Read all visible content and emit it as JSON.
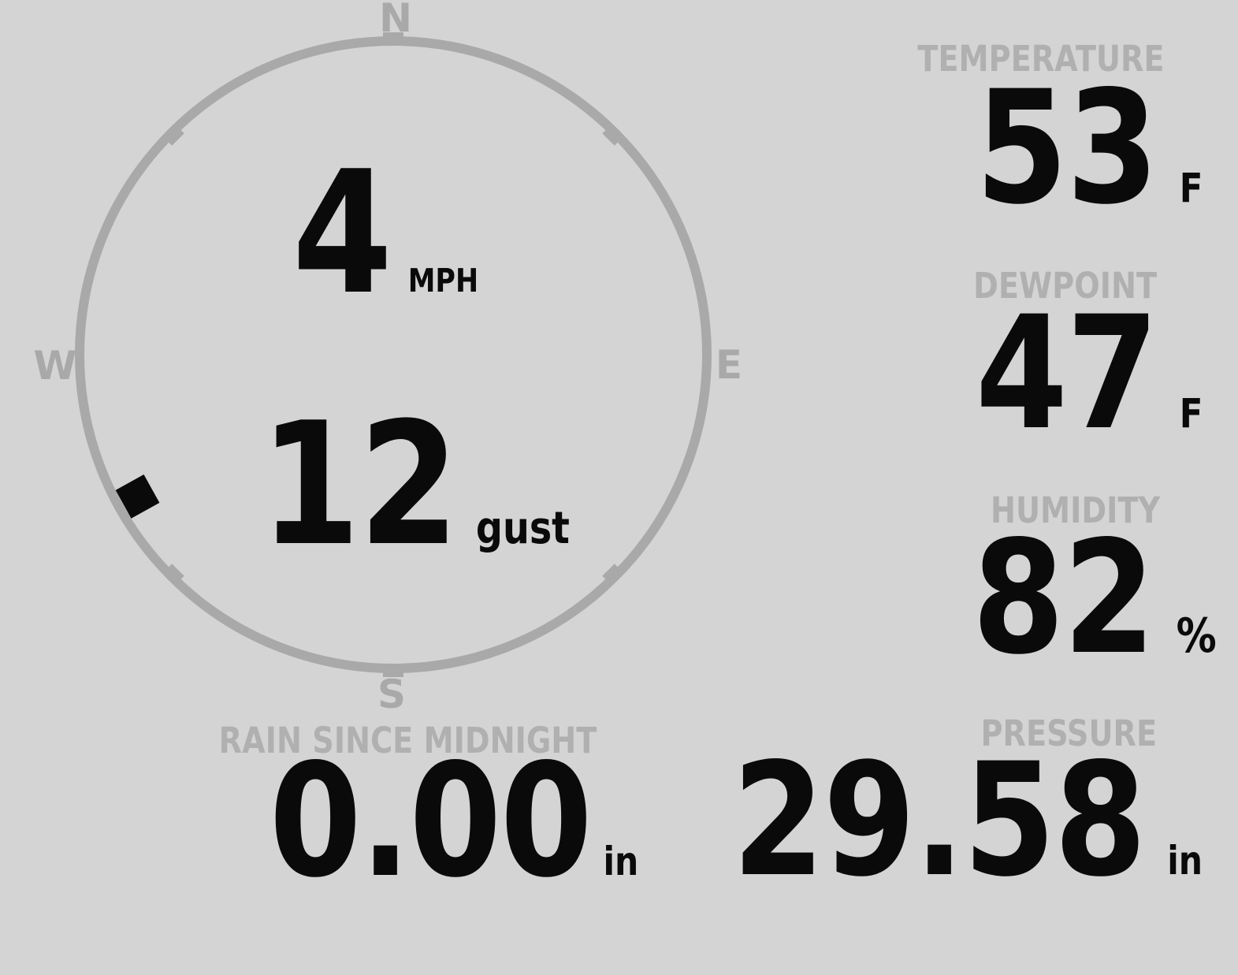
{
  "compass": {
    "north": "N",
    "east": "E",
    "south": "S",
    "west": "W",
    "wind_speed": "4",
    "wind_speed_unit": "MPH",
    "wind_gust": "12",
    "wind_gust_unit": "gust",
    "wind_direction_bearing_deg": 241
  },
  "metrics": {
    "temperature": {
      "label": "TEMPERATURE",
      "value": "53",
      "unit": "F"
    },
    "dewpoint": {
      "label": "DEWPOINT",
      "value": "47",
      "unit": "F"
    },
    "humidity": {
      "label": "HUMIDITY",
      "value": "82",
      "unit": "%"
    },
    "pressure": {
      "label": "PRESSURE",
      "value": "29.58",
      "unit": "in"
    },
    "rain_since_midnight": {
      "label": "RAIN SINCE MIDNIGHT",
      "value": "0.00",
      "unit": "in"
    }
  },
  "colors": {
    "background": "#d4d4d4",
    "compass_gray": "#a9a9a9",
    "label_gray": "#b0b0b0",
    "value_black": "#0a0a0a"
  }
}
